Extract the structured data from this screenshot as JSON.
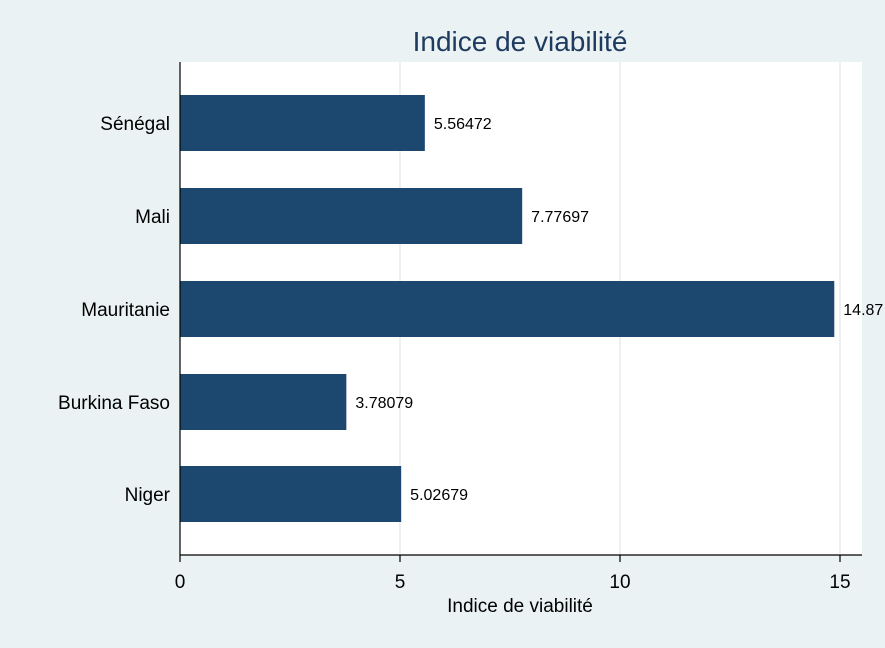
{
  "chart_data": {
    "type": "bar",
    "orientation": "horizontal",
    "title": "Indice de viabilité",
    "xlabel": "Indice de viabilité",
    "ylabel": "",
    "categories": [
      "Sénégal",
      "Mali",
      "Mauritanie",
      "Burkina Faso",
      "Niger"
    ],
    "values": [
      5.56472,
      7.77697,
      14.87,
      3.78079,
      5.02679
    ],
    "data_labels": [
      "5.56472",
      "7.77697",
      "14.87",
      "3.78079",
      "5.02679"
    ],
    "xlim": [
      0,
      15.5
    ],
    "xticks": [
      0,
      5,
      10,
      15
    ],
    "xtick_labels": [
      "0",
      "5",
      "10",
      "15"
    ],
    "grid": "vertical",
    "legend": "none",
    "bar_color": "#1c4870",
    "plot_background": "#ffffff",
    "page_background": "#eaf2f3",
    "grid_color": "#e6ecef",
    "title_color": "#1e3a5f"
  }
}
